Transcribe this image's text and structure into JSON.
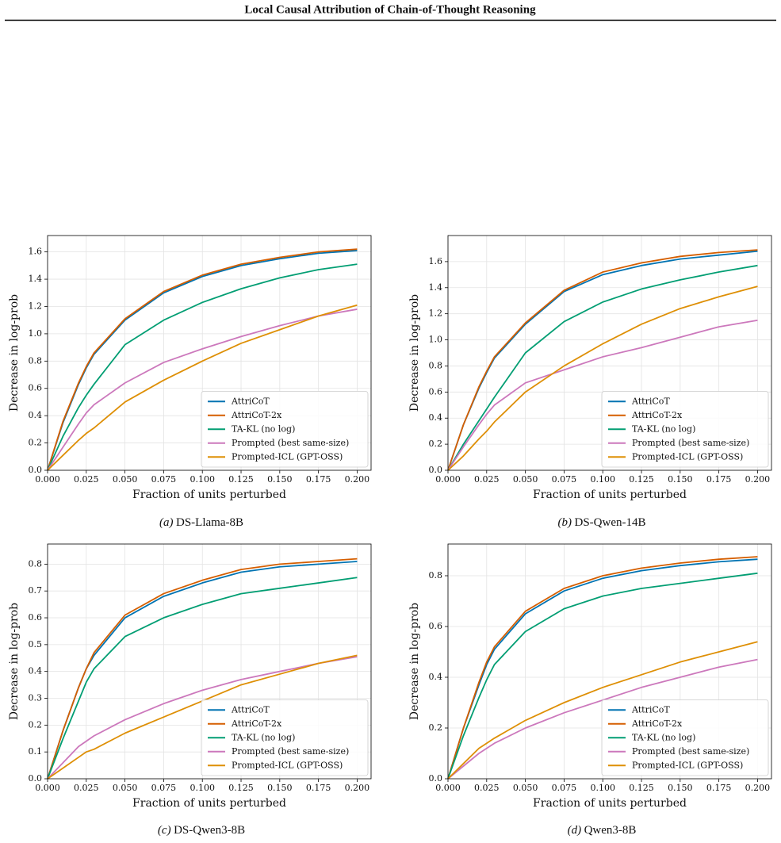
{
  "header": {
    "title": "Local Causal Attribution of Chain-of-Thought Reasoning"
  },
  "chart_data": [
    {
      "type": "line",
      "subcaption_label": "(a)",
      "subcaption": "DS-Llama-8B",
      "xlabel": "Fraction of units perturbed",
      "ylabel": "Decrease in log-prob",
      "x": [
        0,
        0.01,
        0.02,
        0.025,
        0.03,
        0.05,
        0.075,
        0.1,
        0.125,
        0.15,
        0.175,
        0.2
      ],
      "xlim": [
        0,
        0.209
      ],
      "ylim": [
        0,
        1.72
      ],
      "xticks": [
        {
          "value": 0,
          "label": "0.000"
        },
        {
          "value": 0.025,
          "label": "0.025"
        },
        {
          "value": 0.05,
          "label": "0.050"
        },
        {
          "value": 0.075,
          "label": "0.075"
        },
        {
          "value": 0.1,
          "label": "0.100"
        },
        {
          "value": 0.125,
          "label": "0.125"
        },
        {
          "value": 0.15,
          "label": "0.150"
        },
        {
          "value": 0.175,
          "label": "0.175"
        },
        {
          "value": 0.2,
          "label": "0.200"
        }
      ],
      "yticks": [
        {
          "value": 0,
          "label": "0.0"
        },
        0.2,
        0.4,
        0.6,
        0.8,
        {
          "value": 1,
          "label": "1.0"
        },
        1.2,
        1.4,
        1.6
      ],
      "grid": true,
      "legend": "lower right",
      "series": [
        {
          "name": "AttriCoT",
          "color": "#0173b2",
          "values": [
            0,
            0.35,
            0.63,
            0.75,
            0.85,
            1.1,
            1.3,
            1.42,
            1.5,
            1.55,
            1.59,
            1.61
          ]
        },
        {
          "name": "AttriCoT-2x",
          "color": "#d55e00",
          "values": [
            0,
            0.36,
            0.64,
            0.76,
            0.86,
            1.11,
            1.31,
            1.43,
            1.51,
            1.56,
            1.6,
            1.62
          ]
        },
        {
          "name": "TA-KL (no log)",
          "color": "#029e73",
          "values": [
            0,
            0.25,
            0.46,
            0.55,
            0.63,
            0.92,
            1.1,
            1.23,
            1.33,
            1.41,
            1.47,
            1.51
          ]
        },
        {
          "name": "Prompted (best same-size)",
          "color": "#cc78bc",
          "values": [
            0,
            0.17,
            0.34,
            0.42,
            0.48,
            0.64,
            0.79,
            0.89,
            0.98,
            1.06,
            1.13,
            1.18
          ]
        },
        {
          "name": "Prompted-ICL (GPT-OSS)",
          "color": "#de8f05",
          "values": [
            0,
            0.11,
            0.22,
            0.27,
            0.31,
            0.5,
            0.66,
            0.8,
            0.93,
            1.03,
            1.13,
            1.21
          ]
        }
      ]
    },
    {
      "type": "line",
      "subcaption_label": "(b)",
      "subcaption": "DS-Qwen-14B",
      "xlabel": "Fraction of units perturbed",
      "ylabel": "Decrease in log-prob",
      "x": [
        0,
        0.01,
        0.02,
        0.025,
        0.03,
        0.05,
        0.075,
        0.1,
        0.125,
        0.15,
        0.175,
        0.2
      ],
      "xlim": [
        0,
        0.209
      ],
      "ylim": [
        0,
        1.8
      ],
      "xticks": [
        {
          "value": 0,
          "label": "0.000"
        },
        {
          "value": 0.025,
          "label": "0.025"
        },
        {
          "value": 0.05,
          "label": "0.050"
        },
        {
          "value": 0.075,
          "label": "0.075"
        },
        {
          "value": 0.1,
          "label": "0.100"
        },
        {
          "value": 0.125,
          "label": "0.125"
        },
        {
          "value": 0.15,
          "label": "0.150"
        },
        {
          "value": 0.175,
          "label": "0.175"
        },
        {
          "value": 0.2,
          "label": "0.200"
        }
      ],
      "yticks": [
        {
          "value": 0,
          "label": "0.0"
        },
        0.2,
        0.4,
        0.6,
        0.8,
        {
          "value": 1,
          "label": "1.0"
        },
        1.2,
        1.4,
        1.6
      ],
      "grid": true,
      "legend": "lower right",
      "series": [
        {
          "name": "AttriCoT",
          "color": "#0173b2",
          "values": [
            0,
            0.35,
            0.63,
            0.75,
            0.86,
            1.12,
            1.37,
            1.5,
            1.57,
            1.62,
            1.65,
            1.68
          ]
        },
        {
          "name": "AttriCoT-2x",
          "color": "#d55e00",
          "values": [
            0,
            0.35,
            0.64,
            0.76,
            0.87,
            1.13,
            1.38,
            1.52,
            1.59,
            1.64,
            1.67,
            1.69
          ]
        },
        {
          "name": "TA-KL (no log)",
          "color": "#029e73",
          "values": [
            0,
            0.2,
            0.38,
            0.47,
            0.56,
            0.9,
            1.14,
            1.29,
            1.39,
            1.46,
            1.52,
            1.57
          ]
        },
        {
          "name": "Prompted (best same-size)",
          "color": "#cc78bc",
          "values": [
            0,
            0.18,
            0.35,
            0.43,
            0.5,
            0.67,
            0.77,
            0.87,
            0.94,
            1.02,
            1.1,
            1.15
          ]
        },
        {
          "name": "Prompted-ICL (GPT-OSS)",
          "color": "#de8f05",
          "values": [
            0,
            0.11,
            0.24,
            0.3,
            0.37,
            0.6,
            0.8,
            0.97,
            1.12,
            1.24,
            1.33,
            1.41
          ]
        }
      ]
    },
    {
      "type": "line",
      "subcaption_label": "(c)",
      "subcaption": "DS-Qwen3-8B",
      "xlabel": "Fraction of units perturbed",
      "ylabel": "Decrease in log-prob",
      "x": [
        0,
        0.01,
        0.02,
        0.025,
        0.03,
        0.05,
        0.075,
        0.1,
        0.125,
        0.15,
        0.175,
        0.2
      ],
      "xlim": [
        0,
        0.209
      ],
      "ylim": [
        0,
        0.875
      ],
      "xticks": [
        {
          "value": 0,
          "label": "0.000"
        },
        {
          "value": 0.025,
          "label": "0.025"
        },
        {
          "value": 0.05,
          "label": "0.050"
        },
        {
          "value": 0.075,
          "label": "0.075"
        },
        {
          "value": 0.1,
          "label": "0.100"
        },
        {
          "value": 0.125,
          "label": "0.125"
        },
        {
          "value": 0.15,
          "label": "0.150"
        },
        {
          "value": 0.175,
          "label": "0.175"
        },
        {
          "value": 0.2,
          "label": "0.200"
        }
      ],
      "yticks": [
        {
          "value": 0,
          "label": "0.0"
        },
        0.1,
        0.2,
        0.3,
        0.4,
        0.5,
        0.6,
        0.7,
        0.8
      ],
      "grid": true,
      "legend": "lower right",
      "series": [
        {
          "name": "AttriCoT",
          "color": "#0173b2",
          "values": [
            0,
            0.18,
            0.34,
            0.41,
            0.46,
            0.6,
            0.68,
            0.73,
            0.77,
            0.79,
            0.8,
            0.81
          ]
        },
        {
          "name": "AttriCoT-2x",
          "color": "#d55e00",
          "values": [
            0,
            0.18,
            0.34,
            0.41,
            0.47,
            0.61,
            0.69,
            0.74,
            0.78,
            0.8,
            0.81,
            0.82
          ]
        },
        {
          "name": "TA-KL (no log)",
          "color": "#029e73",
          "values": [
            0,
            0.15,
            0.29,
            0.36,
            0.41,
            0.53,
            0.6,
            0.65,
            0.69,
            0.71,
            0.73,
            0.75
          ]
        },
        {
          "name": "Prompted (best same-size)",
          "color": "#cc78bc",
          "values": [
            0,
            0.06,
            0.12,
            0.14,
            0.16,
            0.22,
            0.28,
            0.33,
            0.37,
            0.4,
            0.43,
            0.455
          ]
        },
        {
          "name": "Prompted-ICL (GPT-OSS)",
          "color": "#de8f05",
          "values": [
            0,
            0.04,
            0.08,
            0.1,
            0.11,
            0.17,
            0.23,
            0.29,
            0.35,
            0.39,
            0.43,
            0.46
          ]
        }
      ]
    },
    {
      "type": "line",
      "subcaption_label": "(d)",
      "subcaption": "Qwen3-8B",
      "xlabel": "Fraction of units perturbed",
      "ylabel": "Decrease in log-prob",
      "x": [
        0,
        0.01,
        0.02,
        0.025,
        0.03,
        0.05,
        0.075,
        0.1,
        0.125,
        0.15,
        0.175,
        0.2
      ],
      "xlim": [
        0,
        0.209
      ],
      "ylim": [
        0,
        0.925
      ],
      "xticks": [
        {
          "value": 0,
          "label": "0.000"
        },
        {
          "value": 0.025,
          "label": "0.025"
        },
        {
          "value": 0.05,
          "label": "0.050"
        },
        {
          "value": 0.075,
          "label": "0.075"
        },
        {
          "value": 0.1,
          "label": "0.100"
        },
        {
          "value": 0.125,
          "label": "0.125"
        },
        {
          "value": 0.15,
          "label": "0.150"
        },
        {
          "value": 0.175,
          "label": "0.175"
        },
        {
          "value": 0.2,
          "label": "0.200"
        }
      ],
      "yticks": [
        {
          "value": 0,
          "label": "0.0"
        },
        0.2,
        0.4,
        0.6,
        0.8
      ],
      "grid": true,
      "legend": "lower right",
      "series": [
        {
          "name": "AttriCoT",
          "color": "#0173b2",
          "values": [
            0,
            0.2,
            0.37,
            0.45,
            0.51,
            0.65,
            0.74,
            0.79,
            0.82,
            0.84,
            0.855,
            0.865
          ]
        },
        {
          "name": "AttriCoT-2x",
          "color": "#d55e00",
          "values": [
            0,
            0.2,
            0.38,
            0.46,
            0.52,
            0.66,
            0.75,
            0.8,
            0.83,
            0.85,
            0.865,
            0.875
          ]
        },
        {
          "name": "TA-KL (no log)",
          "color": "#029e73",
          "values": [
            0,
            0.17,
            0.32,
            0.39,
            0.45,
            0.58,
            0.67,
            0.72,
            0.75,
            0.77,
            0.79,
            0.81
          ]
        },
        {
          "name": "Prompted (best same-size)",
          "color": "#cc78bc",
          "values": [
            0,
            0.05,
            0.1,
            0.12,
            0.14,
            0.2,
            0.26,
            0.31,
            0.36,
            0.4,
            0.44,
            0.47
          ]
        },
        {
          "name": "Prompted-ICL (GPT-OSS)",
          "color": "#de8f05",
          "values": [
            0,
            0.06,
            0.12,
            0.14,
            0.16,
            0.23,
            0.3,
            0.36,
            0.41,
            0.46,
            0.5,
            0.54
          ]
        }
      ]
    }
  ]
}
